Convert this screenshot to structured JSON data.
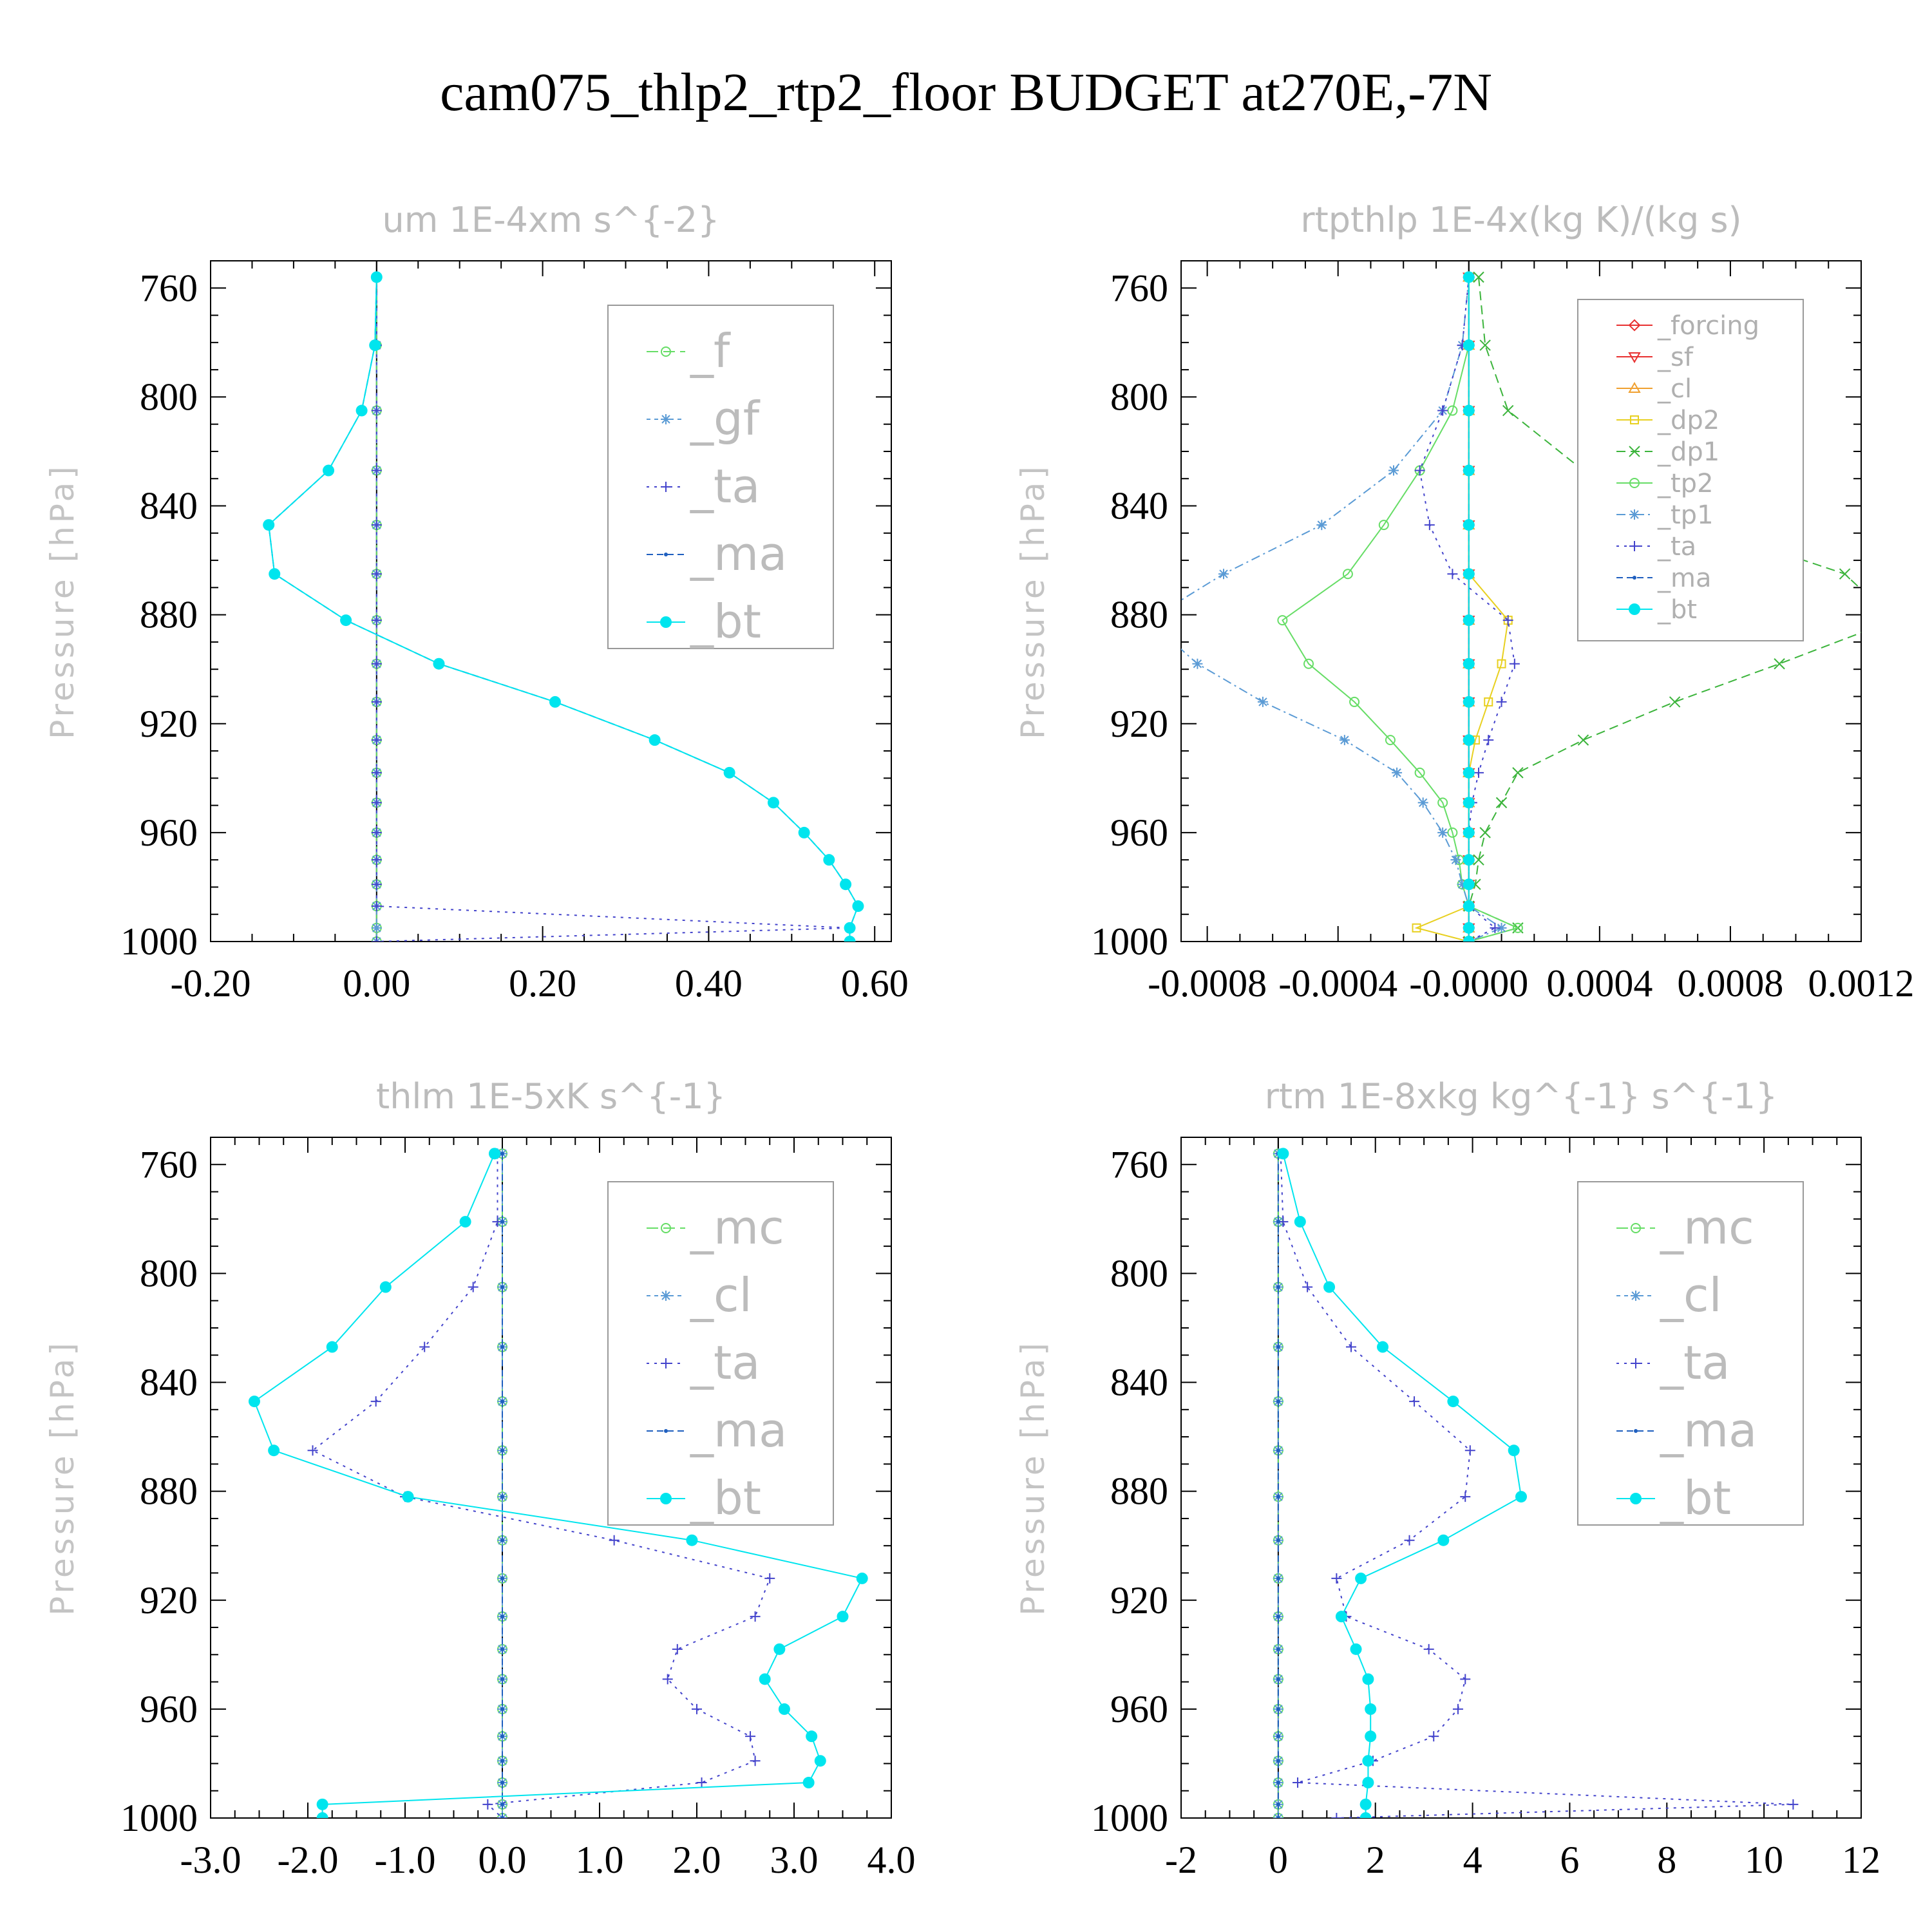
{
  "title": "cam075_thlp2_rtp2_floor  BUDGET at270E,-7N",
  "chart_data": [
    {
      "type": "line",
      "title": "um  1E-4xm s^{-2}",
      "ylabel": "Pressure [hPa]",
      "ylim": [
        1000,
        750
      ],
      "xlim": [
        -0.2,
        0.62
      ],
      "xticks": [
        -0.2,
        0.0,
        0.2,
        0.4,
        0.6
      ],
      "xtick_labels": [
        "-0.20",
        "0.00",
        "0.20",
        "0.40",
        "0.60"
      ],
      "yticks": [
        760,
        800,
        840,
        880,
        920,
        960,
        1000
      ],
      "legend_placement": "top-right",
      "legend_size": "large",
      "levels": [
        756,
        781,
        805,
        827,
        847,
        865,
        882,
        898,
        912,
        926,
        938,
        949,
        960,
        970,
        979,
        987,
        995,
        1000
      ],
      "series": [
        {
          "name": "_f",
          "color": "#66dd66",
          "marker": "circle-open",
          "dash": "18,8",
          "values": [
            0,
            0,
            0,
            0,
            0,
            0,
            0,
            0,
            0,
            0,
            0,
            0,
            0,
            0,
            0,
            0,
            0,
            0
          ]
        },
        {
          "name": "_gf",
          "color": "#5b9bd5",
          "marker": "asterisk",
          "dash": "6,6",
          "values": [
            0,
            0,
            0,
            0,
            0,
            0,
            0,
            0,
            0,
            0,
            0,
            0,
            0,
            0,
            0,
            0,
            0,
            0
          ]
        },
        {
          "name": "_ta",
          "color": "#4444cc",
          "marker": "plus",
          "dash": "4,8",
          "values": [
            0,
            0,
            0,
            0,
            0,
            0,
            0,
            0,
            0,
            0,
            0,
            0,
            0,
            0,
            0,
            0,
            0.57,
            0
          ]
        },
        {
          "name": "_ma",
          "color": "#1f5fbf",
          "marker": "dot",
          "dash": "10,6",
          "values": [
            0.0,
            -0.002,
            -0.018,
            -0.058,
            -0.13,
            -0.123,
            -0.037,
            0.075,
            0.215,
            0.335,
            0.425,
            0.478,
            0.515,
            0.545,
            0.565,
            0.58,
            0.57,
            0.57
          ]
        },
        {
          "name": "_bt",
          "color": "#00e5ee",
          "marker": "filled-circle",
          "dash": "",
          "values": [
            0.0,
            -0.002,
            -0.018,
            -0.058,
            -0.13,
            -0.123,
            -0.037,
            0.075,
            0.215,
            0.335,
            0.425,
            0.478,
            0.515,
            0.545,
            0.565,
            0.58,
            0.57,
            0.57
          ]
        }
      ]
    },
    {
      "type": "line",
      "title": "rtpthlp  1E-4x(kg K)/(kg s)",
      "ylabel": "Pressure [hPa]",
      "ylim": [
        1000,
        750
      ],
      "xlim": [
        -0.00088,
        0.0012
      ],
      "xticks": [
        -0.0008,
        -0.0004,
        0.0,
        0.0004,
        0.0008,
        0.0012
      ],
      "xtick_labels": [
        "-0.0008",
        "-0.0004",
        "-0.0000",
        "0.0004",
        "0.0008",
        "0.0012"
      ],
      "yticks": [
        760,
        800,
        840,
        880,
        920,
        960,
        1000
      ],
      "legend_placement": "top-right",
      "legend_size": "small",
      "levels": [
        756,
        781,
        805,
        827,
        847,
        865,
        882,
        898,
        912,
        926,
        938,
        949,
        960,
        970,
        979,
        987,
        995,
        1000
      ],
      "series": [
        {
          "name": "_forcing",
          "color": "#e83030",
          "marker": "diamond",
          "dash": "",
          "values": [
            0,
            0,
            0,
            0,
            0,
            0,
            0,
            0,
            0,
            0,
            0,
            0,
            0,
            0,
            0,
            0,
            0,
            0
          ]
        },
        {
          "name": "_sf",
          "color": "#e83030",
          "marker": "triangle-down",
          "dash": "",
          "values": [
            0,
            0,
            0,
            0,
            0,
            0,
            0,
            0,
            0,
            0,
            0,
            0,
            0,
            0,
            0,
            0,
            0,
            0
          ]
        },
        {
          "name": "_cl",
          "color": "#f0a030",
          "marker": "triangle-up",
          "dash": "",
          "values": [
            0,
            0,
            0,
            0,
            0,
            0,
            0,
            0,
            0,
            0,
            0,
            0,
            0,
            0,
            0,
            0,
            0,
            0
          ]
        },
        {
          "name": "_dp2",
          "color": "#e8d020",
          "marker": "square",
          "dash": "",
          "values": [
            0,
            0,
            0,
            0,
            0,
            0,
            0.00012,
            0.0001,
            6e-05,
            2e-05,
            0,
            0,
            0,
            0,
            0,
            0,
            -0.00016,
            0
          ]
        },
        {
          "name": "_dp1",
          "color": "#3cb43c",
          "marker": "x",
          "dash": "14,8",
          "values": [
            3e-05,
            5e-05,
            0.00012,
            0.00035,
            0.0007,
            0.00115,
            0.0013,
            0.00095,
            0.00063,
            0.00035,
            0.00015,
            0.0001,
            5e-05,
            3e-05,
            2e-05,
            0,
            0.00015,
            0
          ]
        },
        {
          "name": "_tp2",
          "color": "#66dd66",
          "marker": "circle-open",
          "dash": "",
          "values": [
            0,
            0,
            -5e-05,
            -0.00015,
            -0.00026,
            -0.00037,
            -0.00057,
            -0.00049,
            -0.00035,
            -0.00024,
            -0.00015,
            -8e-05,
            -5e-05,
            -3e-05,
            -2e-05,
            0,
            0.00015,
            0
          ]
        },
        {
          "name": "_tp1",
          "color": "#5b9bd5",
          "marker": "asterisk",
          "dash": "14,6,3,6",
          "values": [
            0,
            -2e-05,
            -8e-05,
            -0.00023,
            -0.00045,
            -0.00075,
            -0.00098,
            -0.00083,
            -0.00063,
            -0.00038,
            -0.00022,
            -0.00014,
            -8e-05,
            -4e-05,
            -2e-05,
            0,
            0.0001,
            0
          ]
        },
        {
          "name": "_ta",
          "color": "#4444cc",
          "marker": "plus",
          "dash": "4,8",
          "values": [
            0,
            -2e-05,
            -8e-05,
            -0.00015,
            -0.00012,
            -5e-05,
            0.00012,
            0.00014,
            0.0001,
            6e-05,
            3e-05,
            1e-05,
            0,
            0,
            0,
            0,
            8e-05,
            0
          ]
        },
        {
          "name": "_ma",
          "color": "#1f5fbf",
          "marker": "dot",
          "dash": "10,6",
          "values": [
            0,
            0,
            0,
            0,
            0,
            0,
            0,
            0,
            0,
            0,
            0,
            0,
            0,
            0,
            0,
            0,
            0,
            0
          ]
        },
        {
          "name": "_bt",
          "color": "#00e5ee",
          "marker": "filled-circle",
          "dash": "",
          "values": [
            0,
            0,
            0,
            0,
            0,
            0,
            0,
            0,
            0,
            0,
            0,
            0,
            0,
            0,
            0,
            0,
            0,
            0
          ]
        }
      ]
    },
    {
      "type": "line",
      "title": "thlm  1E-5xK s^{-1}",
      "ylabel": "Pressure [hPa]",
      "ylim": [
        1000,
        750
      ],
      "xlim": [
        -3.0,
        4.0
      ],
      "xticks": [
        -3.0,
        -2.0,
        -1.0,
        0.0,
        1.0,
        2.0,
        3.0,
        4.0
      ],
      "xtick_labels": [
        "-3.0",
        "-2.0",
        "-1.0",
        "0.0",
        "1.0",
        "2.0",
        "3.0",
        "4.0"
      ],
      "yticks": [
        760,
        800,
        840,
        880,
        920,
        960,
        1000
      ],
      "legend_placement": "top-right",
      "legend_size": "large",
      "levels": [
        756,
        781,
        805,
        827,
        847,
        865,
        882,
        898,
        912,
        926,
        938,
        949,
        960,
        970,
        979,
        987,
        995,
        1000
      ],
      "series": [
        {
          "name": "_mc",
          "color": "#66dd66",
          "marker": "circle-open",
          "dash": "18,8",
          "values": [
            0,
            0,
            0,
            0,
            0,
            0,
            0,
            0,
            0,
            0,
            0,
            0,
            0,
            0,
            0,
            0,
            0,
            0
          ]
        },
        {
          "name": "_cl",
          "color": "#5b9bd5",
          "marker": "asterisk",
          "dash": "6,6",
          "values": [
            0,
            0,
            0,
            0,
            0,
            0,
            0,
            0,
            0,
            0,
            0,
            0,
            0,
            0,
            0,
            0,
            0,
            0
          ]
        },
        {
          "name": "_ta",
          "color": "#4444cc",
          "marker": "plus",
          "dash": "4,8",
          "values": [
            -0.05,
            -0.05,
            -0.3,
            -0.8,
            -1.3,
            -1.95,
            -1.0,
            1.15,
            2.75,
            2.6,
            1.8,
            1.7,
            2.0,
            2.55,
            2.6,
            2.05,
            -0.15,
            0
          ]
        },
        {
          "name": "_ma",
          "color": "#1f5fbf",
          "marker": "dot",
          "dash": "10,6",
          "values": [
            0,
            0,
            0,
            0,
            0,
            0,
            0,
            0,
            0,
            0,
            0,
            0,
            0,
            0,
            0,
            0,
            0,
            0
          ]
        },
        {
          "name": "_bt",
          "color": "#00e5ee",
          "marker": "filled-circle",
          "dash": "",
          "values": [
            -0.08,
            -0.38,
            -1.2,
            -1.75,
            -2.55,
            -2.35,
            -0.97,
            1.95,
            3.7,
            3.5,
            2.85,
            2.7,
            2.9,
            3.18,
            3.27,
            3.15,
            -1.85,
            -1.85
          ]
        }
      ]
    },
    {
      "type": "line",
      "title": "rtm  1E-8xkg kg^{-1} s^{-1}",
      "ylabel": "Pressure [hPa]",
      "ylim": [
        1000,
        750
      ],
      "xlim": [
        -2,
        12
      ],
      "xticks": [
        -2,
        0,
        2,
        4,
        6,
        8,
        10,
        12
      ],
      "xtick_labels": [
        "-2",
        "0",
        "2",
        "4",
        "6",
        "8",
        "10",
        "12"
      ],
      "yticks": [
        760,
        800,
        840,
        880,
        920,
        960,
        1000
      ],
      "legend_placement": "top-right",
      "legend_size": "large",
      "levels": [
        756,
        781,
        805,
        827,
        847,
        865,
        882,
        898,
        912,
        926,
        938,
        949,
        960,
        970,
        979,
        987,
        995,
        1000
      ],
      "series": [
        {
          "name": "_mc",
          "color": "#66dd66",
          "marker": "circle-open",
          "dash": "18,8",
          "values": [
            0,
            0,
            0,
            0,
            0,
            0,
            0,
            0,
            0,
            0,
            0,
            0,
            0,
            0,
            0,
            0,
            0,
            0
          ]
        },
        {
          "name": "_cl",
          "color": "#5b9bd5",
          "marker": "asterisk",
          "dash": "6,6",
          "values": [
            0,
            0,
            0,
            0,
            0,
            0,
            0,
            0,
            0,
            0,
            0,
            0,
            0,
            0,
            0,
            0,
            0,
            0
          ]
        },
        {
          "name": "_ta",
          "color": "#4444cc",
          "marker": "plus",
          "dash": "4,8",
          "values": [
            0.05,
            0.1,
            0.6,
            1.5,
            2.8,
            3.95,
            3.85,
            2.7,
            1.2,
            1.4,
            3.1,
            3.85,
            3.7,
            3.2,
            1.95,
            0.4,
            10.6,
            1.2
          ]
        },
        {
          "name": "_ma",
          "color": "#1f5fbf",
          "marker": "dot",
          "dash": "10,6",
          "values": [
            0,
            0,
            0,
            0,
            0,
            0,
            0,
            0,
            0,
            0,
            0,
            0,
            0,
            0,
            0,
            0,
            0,
            0
          ]
        },
        {
          "name": "_bt",
          "color": "#00e5ee",
          "marker": "filled-circle",
          "dash": "",
          "values": [
            0.1,
            0.45,
            1.05,
            2.15,
            3.6,
            4.85,
            5.0,
            3.4,
            1.7,
            1.3,
            1.6,
            1.85,
            1.9,
            1.9,
            1.85,
            1.85,
            1.8,
            1.8
          ]
        }
      ]
    }
  ]
}
